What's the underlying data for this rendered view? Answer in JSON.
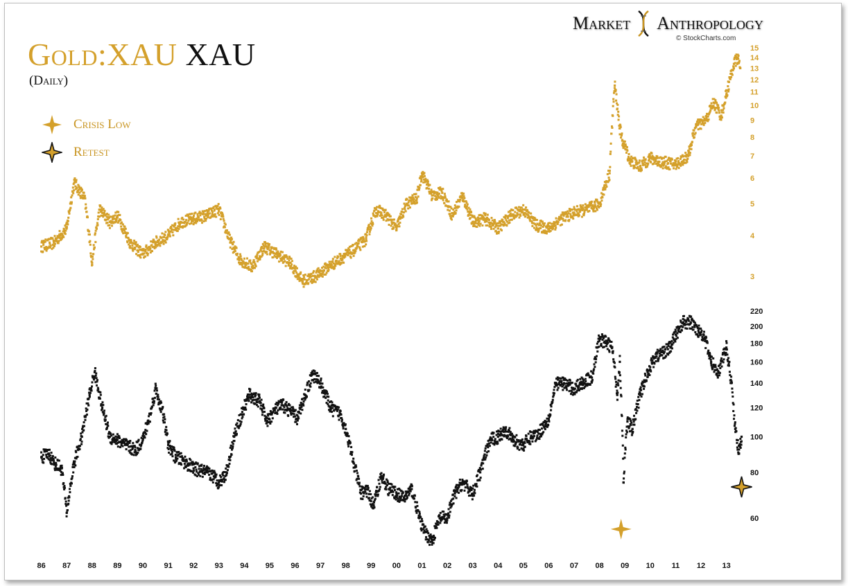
{
  "title_gold": "Gold:XAU",
  "title_black": "XAU",
  "subtitle": "(Daily)",
  "brand": {
    "left": "Market",
    "right": "Anthropology",
    "source": "© StockCharts.com"
  },
  "legend": [
    {
      "label": "Crisis Low",
      "icon": "crisis-low-star-icon",
      "color": "#d4a02b"
    },
    {
      "label": "Retest",
      "icon": "retest-star-icon",
      "color": "#111111"
    }
  ],
  "colors": {
    "gold_series": "#d4a02b",
    "xau_series": "#111111"
  },
  "chart_data": [
    {
      "type": "line",
      "series": [
        {
          "name": "Gold:XAU",
          "color": "#d4a02b"
        }
      ],
      "x": [
        1986.0,
        1986.5,
        1987.0,
        1987.3,
        1987.7,
        1988.0,
        1988.3,
        1988.7,
        1989.0,
        1989.5,
        1990.0,
        1990.5,
        1991.0,
        1991.5,
        1992.0,
        1992.5,
        1993.0,
        1993.4,
        1993.8,
        1994.3,
        1994.8,
        1995.3,
        1995.8,
        1996.3,
        1996.8,
        1997.3,
        1997.8,
        1998.3,
        1998.8,
        1999.2,
        1999.6,
        2000.0,
        2000.4,
        2000.8,
        2001.0,
        2001.4,
        2001.8,
        2002.2,
        2002.6,
        2003.0,
        2003.5,
        2004.0,
        2004.5,
        2005.0,
        2005.5,
        2006.0,
        2006.5,
        2007.0,
        2007.5,
        2008.0,
        2008.4,
        2008.6,
        2008.8,
        2008.9,
        2009.0,
        2009.2,
        2009.6,
        2010.0,
        2010.5,
        2011.0,
        2011.5,
        2011.8,
        2012.2,
        2012.5,
        2012.8,
        2013.0,
        2013.2,
        2013.3,
        2013.45,
        2013.55
      ],
      "values": [
        3.7,
        3.8,
        4.2,
        5.8,
        5.2,
        3.3,
        4.8,
        4.4,
        4.6,
        3.8,
        3.5,
        3.8,
        4.0,
        4.4,
        4.5,
        4.6,
        4.8,
        3.9,
        3.4,
        3.2,
        3.7,
        3.5,
        3.3,
        2.9,
        3.0,
        3.2,
        3.4,
        3.6,
        3.9,
        4.8,
        4.6,
        4.2,
        5.0,
        5.2,
        6.2,
        5.3,
        5.4,
        4.6,
        5.3,
        4.4,
        4.5,
        4.2,
        4.6,
        4.8,
        4.3,
        4.2,
        4.5,
        4.7,
        4.8,
        5.0,
        6.2,
        11.5,
        8.5,
        7.8,
        7.5,
        6.8,
        6.5,
        6.9,
        6.7,
        6.6,
        7.0,
        8.6,
        9.0,
        10.2,
        9.3,
        10.8,
        12.5,
        13.4,
        14.0,
        13.0
      ],
      "yticks": [
        3,
        4,
        5,
        6,
        7,
        8,
        9,
        10,
        11,
        12,
        13,
        14,
        15
      ],
      "ylim": [
        2.8,
        15.3
      ],
      "yscale": "log"
    },
    {
      "type": "line",
      "series": [
        {
          "name": "XAU",
          "color": "#111111"
        }
      ],
      "x": [
        1986.0,
        1986.3,
        1986.5,
        1986.8,
        1987.0,
        1987.3,
        1987.6,
        1987.9,
        1988.1,
        1988.4,
        1988.7,
        1989.0,
        1989.3,
        1989.7,
        1990.0,
        1990.3,
        1990.5,
        1990.8,
        1991.0,
        1991.3,
        1991.6,
        1992.0,
        1992.5,
        1992.8,
        1993.0,
        1993.3,
        1993.6,
        1993.9,
        1994.2,
        1994.6,
        1994.9,
        1995.2,
        1995.5,
        1995.8,
        1996.1,
        1996.4,
        1996.7,
        1997.0,
        1997.4,
        1997.8,
        1998.0,
        1998.3,
        1998.6,
        1998.8,
        1999.1,
        1999.4,
        1999.7,
        2000.0,
        2000.3,
        2000.6,
        2000.9,
        2001.1,
        2001.4,
        2001.7,
        2002.0,
        2002.3,
        2002.6,
        2003.0,
        2003.3,
        2003.7,
        2004.0,
        2004.3,
        2004.6,
        2005.0,
        2005.3,
        2005.6,
        2006.0,
        2006.3,
        2006.6,
        2007.0,
        2007.3,
        2007.7,
        2008.0,
        2008.3,
        2008.5,
        2008.7,
        2008.8,
        2008.95,
        2009.1,
        2009.3,
        2009.6,
        2009.9,
        2010.2,
        2010.5,
        2010.8,
        2011.0,
        2011.3,
        2011.6,
        2011.9,
        2012.1,
        2012.4,
        2012.7,
        2013.0,
        2013.2,
        2013.35,
        2013.5,
        2013.6
      ],
      "values": [
        88,
        90,
        85,
        82,
        62,
        85,
        100,
        130,
        150,
        120,
        100,
        98,
        95,
        92,
        98,
        115,
        135,
        115,
        95,
        88,
        86,
        82,
        80,
        78,
        75,
        80,
        100,
        115,
        130,
        125,
        110,
        118,
        122,
        118,
        112,
        130,
        148,
        140,
        120,
        115,
        105,
        85,
        70,
        72,
        65,
        78,
        72,
        70,
        68,
        72,
        60,
        55,
        52,
        60,
        60,
        70,
        75,
        70,
        80,
        98,
        100,
        105,
        98,
        95,
        100,
        102,
        112,
        140,
        140,
        135,
        140,
        145,
        185,
        180,
        175,
        130,
        160,
        75,
        110,
        105,
        130,
        150,
        165,
        170,
        175,
        190,
        205,
        205,
        195,
        190,
        160,
        150,
        175,
        140,
        105,
        90,
        100
      ],
      "yticks": [
        60,
        80,
        100,
        120,
        140,
        160,
        180,
        200,
        220
      ],
      "ylim": [
        50,
        225
      ],
      "yscale": "log",
      "annotations": [
        {
          "label": "Crisis Low",
          "x": 2008.85,
          "y": 56
        },
        {
          "label": "Retest",
          "x": 2013.6,
          "y": 73
        }
      ]
    }
  ],
  "x_tick_labels": [
    "86",
    "87",
    "88",
    "89",
    "90",
    "91",
    "92",
    "93",
    "94",
    "95",
    "96",
    "97",
    "98",
    "99",
    "00",
    "01",
    "02",
    "03",
    "04",
    "05",
    "06",
    "07",
    "08",
    "09",
    "10",
    "11",
    "12",
    "13"
  ]
}
